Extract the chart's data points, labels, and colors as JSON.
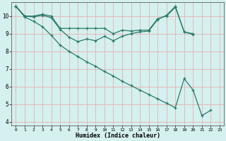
{
  "xlabel": "Humidex (Indice chaleur)",
  "bg_color": "#d4f0ef",
  "grid_color": "#e8b0b0",
  "line_color": "#2a7a6a",
  "xlim": [
    -0.5,
    23.5
  ],
  "ylim": [
    3.8,
    10.8
  ],
  "yticks": [
    4,
    5,
    6,
    7,
    8,
    9,
    10
  ],
  "xticks": [
    0,
    1,
    2,
    3,
    4,
    5,
    6,
    7,
    8,
    9,
    10,
    11,
    12,
    13,
    14,
    15,
    16,
    17,
    18,
    19,
    20,
    21,
    22,
    23
  ],
  "lines": [
    {
      "x": [
        0,
        1,
        2,
        3,
        4,
        5,
        6,
        7,
        8,
        9,
        10,
        11,
        12,
        13,
        14,
        15,
        16,
        17,
        18,
        19,
        20
      ],
      "y": [
        10.55,
        10.0,
        10.0,
        10.1,
        10.0,
        9.3,
        9.3,
        9.3,
        9.3,
        9.3,
        9.3,
        9.0,
        9.2,
        9.15,
        9.2,
        9.2,
        9.85,
        10.0,
        10.5,
        9.1,
        9.0
      ]
    },
    {
      "x": [
        0,
        1,
        2,
        3,
        4,
        5,
        6,
        7,
        8,
        9,
        10,
        11,
        12,
        13,
        14,
        15,
        16,
        17,
        18,
        19,
        20
      ],
      "y": [
        10.55,
        10.0,
        9.95,
        10.05,
        9.9,
        9.25,
        8.8,
        8.55,
        8.7,
        8.6,
        8.85,
        8.6,
        8.85,
        9.0,
        9.1,
        9.15,
        9.8,
        10.05,
        10.55,
        9.1,
        8.95
      ]
    },
    {
      "x": [
        0,
        1,
        2,
        3,
        4,
        5,
        6,
        7,
        8,
        9,
        10,
        11,
        12,
        13,
        14,
        15,
        16,
        17,
        18,
        19,
        20,
        21,
        22,
        23
      ],
      "y": [
        10.55,
        9.95,
        9.7,
        9.4,
        8.9,
        8.35,
        8.0,
        7.7,
        7.4,
        7.15,
        6.85,
        6.6,
        6.3,
        6.05,
        5.8,
        5.55,
        5.3,
        5.05,
        4.8,
        6.45,
        5.8,
        4.35,
        4.65,
        null
      ]
    }
  ]
}
